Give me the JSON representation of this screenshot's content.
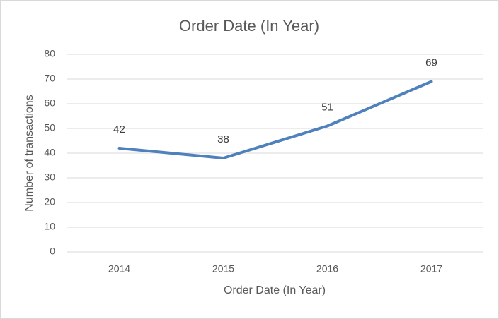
{
  "chart_data": {
    "type": "line",
    "title": "Order Date (In Year)",
    "x_label": "Order Date (In Year)",
    "y_label": "Number of transactions",
    "categories": [
      "2014",
      "2015",
      "2016",
      "2017"
    ],
    "series": [
      {
        "name": "Number of transactions",
        "color": "#4f81bd",
        "values": [
          42,
          38,
          51,
          69
        ]
      }
    ],
    "ylim": [
      0,
      80
    ],
    "yticks": [
      0,
      10,
      20,
      30,
      40,
      50,
      60,
      70,
      80
    ],
    "grid": true,
    "data_labels": true
  }
}
